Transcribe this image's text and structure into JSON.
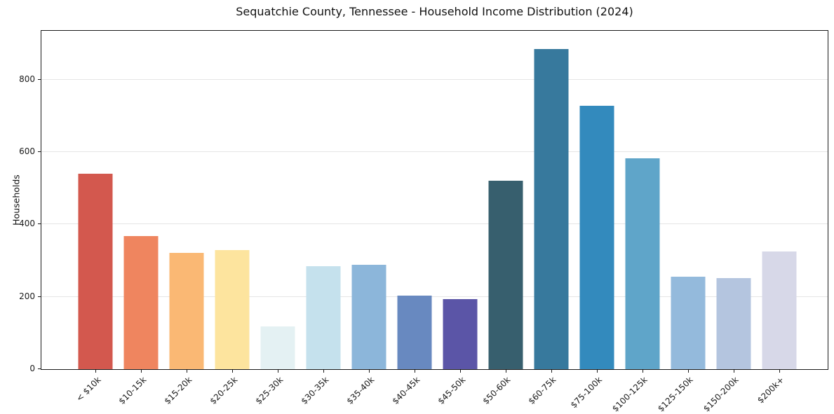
{
  "title": "Sequatchie County, Tennessee - Household Income Distribution (2024)",
  "chart_data": {
    "type": "bar",
    "title": "Sequatchie County, Tennessee - Household Income Distribution (2024)",
    "xlabel": "",
    "ylabel": "Households",
    "categories": [
      "< $10k",
      "$10-15k",
      "$15-20k",
      "$20-25k",
      "$25-30k",
      "$30-35k",
      "$35-40k",
      "$40-45k",
      "$45-50k",
      "$50-60k",
      "$60-75k",
      "$75-100k",
      "$100-125k",
      "$125-150k",
      "$150-200k",
      "$200k+"
    ],
    "values": [
      540,
      368,
      322,
      330,
      119,
      285,
      288,
      203,
      194,
      520,
      884,
      728,
      582,
      256,
      252,
      325
    ],
    "bar_colors": [
      "#d3584e",
      "#ef855f",
      "#fab874",
      "#fde49e",
      "#e4f1f3",
      "#c5e1ed",
      "#8cb6da",
      "#6889c0",
      "#5b55a7",
      "#375f6e",
      "#37799d",
      "#338abd",
      "#5fa5c9",
      "#94badc",
      "#b4c5df",
      "#d7d8e8"
    ],
    "yticks": [
      0,
      200,
      400,
      600,
      800
    ],
    "ylim": [
      0,
      935
    ],
    "grid": "horizontal",
    "legend": "none",
    "background_color": "#ffffff",
    "grid_color": "#e5e5e5",
    "spine_color": "#1a1a1a",
    "text_color": "#1a1a1a"
  }
}
